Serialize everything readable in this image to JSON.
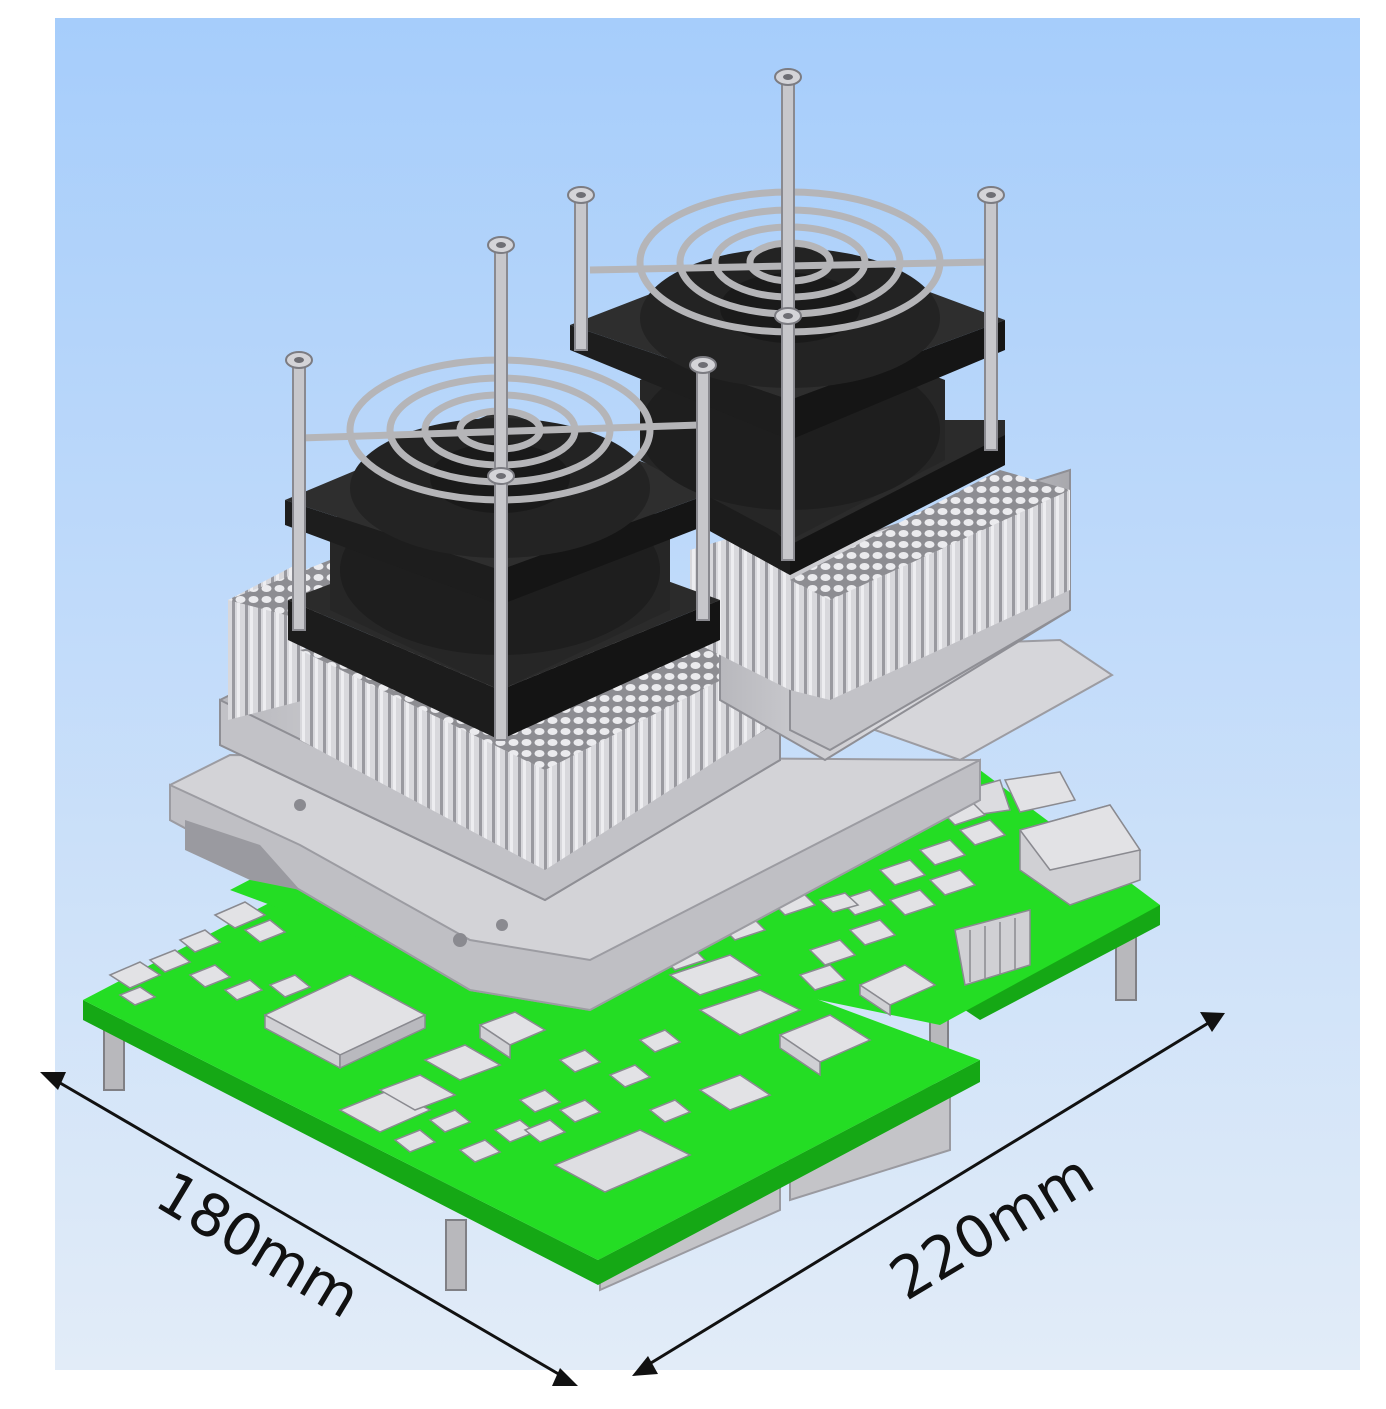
{
  "dimensions": {
    "width_label": "180mm",
    "length_label": "220mm"
  },
  "colors": {
    "background_top": "#a8cffb",
    "background_bottom": "#dde9f7",
    "pcb": "#22e022",
    "pcb_edge": "#14a814",
    "component": "#cfcfd3",
    "component_top": "#e4e4e7",
    "heatsink": "#c8c8cc",
    "fan": "#232323",
    "grill": "#b8b8b8",
    "arrow": "#111111"
  }
}
